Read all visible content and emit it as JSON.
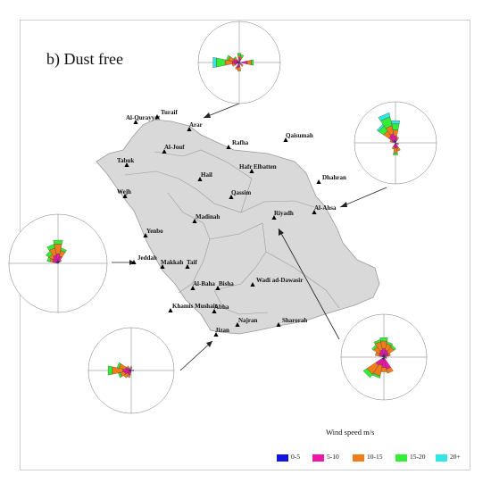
{
  "panel_label": "b)   Dust free",
  "legend": {
    "title": "Wind speed m/s",
    "items": [
      {
        "label": "0-5",
        "color": "#1515e0"
      },
      {
        "label": "5-10",
        "color": "#ee18a8"
      },
      {
        "label": "10-15",
        "color": "#f07d1a"
      },
      {
        "label": "15-20",
        "color": "#33ee33"
      },
      {
        "label": "20+",
        "color": "#33e6e6"
      }
    ]
  },
  "cities": [
    "Turaif",
    "Al-Qurayyat",
    "Arar",
    "Al-Jouf",
    "Rafha",
    "Tabuk",
    "Qaisumah",
    "Hafr Elbatten",
    "Hail",
    "Wejh",
    "Qassim",
    "Dhahran",
    "Al-Ahsa",
    "Riyadh",
    "Madinah",
    "Yenbo",
    "Jeddah",
    "Makkah",
    "Taif",
    "Wadi ad-Dawasir",
    "Al-Baha",
    "Bisha",
    "Khamis Mushait",
    "Abha",
    "Najran",
    "Sharorah",
    "Jizan"
  ]
}
